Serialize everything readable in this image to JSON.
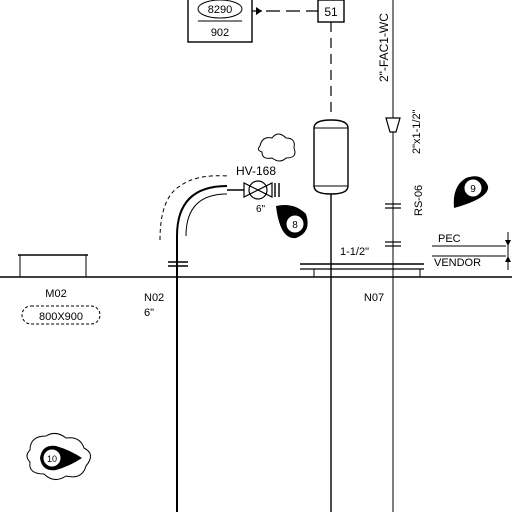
{
  "drawing": {
    "tag_box": {
      "top": "8290",
      "bottom": "902"
    },
    "connector_number": "51",
    "line_label_vertical": "2\"-FAC1-WC",
    "reducer_label": "2\"x1-1/2\"",
    "valve_tag": "HV-168",
    "valve_size": "6\"",
    "flange_label_vertical": "RS-06",
    "pipe_size_label": "1-1/2\"",
    "scope_labels": {
      "upper": "PEC",
      "lower": "VENDOR"
    },
    "nozzles": [
      {
        "id": "M02",
        "detail": "800X900"
      },
      {
        "id": "N02",
        "detail": "6\""
      },
      {
        "id": "N07",
        "detail": ""
      }
    ],
    "revision_markers": [
      "8",
      "9",
      "10"
    ],
    "colors": {
      "line": "#000000",
      "background": "#ffffff"
    }
  }
}
